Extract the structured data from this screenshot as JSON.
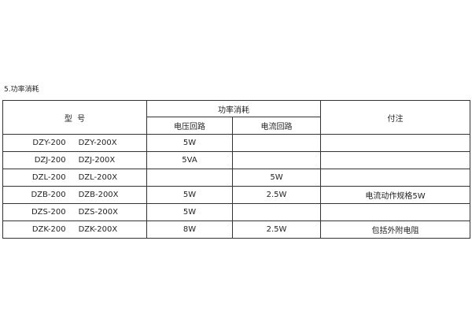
{
  "section_title": "5.功率消耗",
  "headers": {
    "model": "型  号",
    "power": "功率消耗",
    "voltage": "电压回路",
    "current": "电流回路",
    "note": "付注"
  },
  "rows": [
    {
      "model_a": "DZY-200",
      "model_b": "DZY-200X",
      "voltage": "5W",
      "current": "",
      "note": ""
    },
    {
      "model_a": "DZJ-200",
      "model_b": "DZJ-200X",
      "voltage": "5VA",
      "current": "",
      "note": ""
    },
    {
      "model_a": "DZL-200",
      "model_b": "DZL-200X",
      "voltage": "",
      "current": "5W",
      "note": ""
    },
    {
      "model_a": "DZB-200",
      "model_b": "DZB-200X",
      "voltage": "5W",
      "current": "2.5W",
      "note": "电流动作规格5W"
    },
    {
      "model_a": "DZS-200",
      "model_b": "DZS-200X",
      "voltage": "5W",
      "current": "",
      "note": ""
    },
    {
      "model_a": "DZK-200",
      "model_b": "DZK-200X",
      "voltage": "8W",
      "current": "2.5W",
      "note": "包括外附电阻"
    }
  ]
}
